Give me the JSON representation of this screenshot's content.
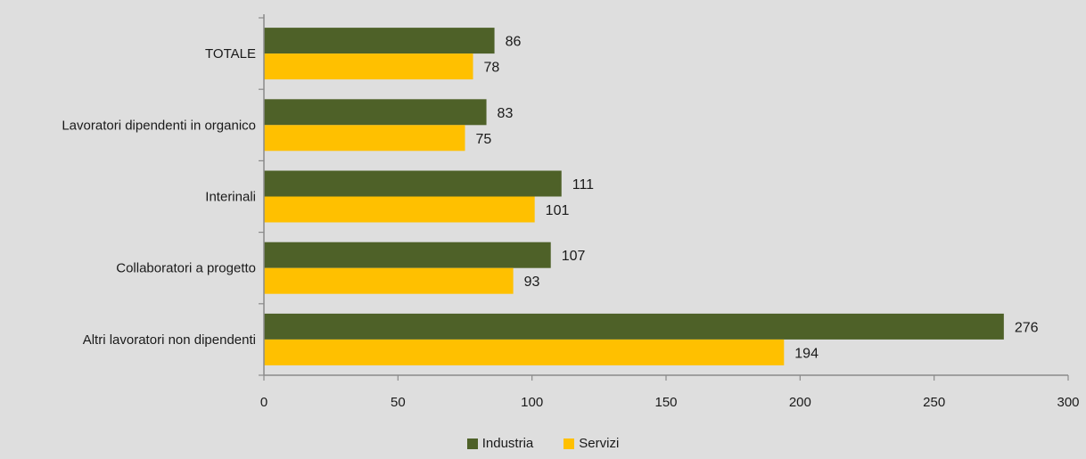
{
  "chart_data": {
    "type": "bar",
    "orientation": "horizontal",
    "categories": [
      "TOTALE",
      "Lavoratori dipendenti in organico",
      "Interinali",
      "Collaboratori a progetto",
      "Altri lavoratori non dipendenti"
    ],
    "series": [
      {
        "name": "Industria",
        "color": "#4e6128",
        "values": [
          86,
          83,
          111,
          107,
          276
        ]
      },
      {
        "name": "Servizi",
        "color": "#ffc000",
        "values": [
          78,
          75,
          101,
          93,
          194
        ]
      }
    ],
    "xlim": [
      0,
      300
    ],
    "xticks": [
      0,
      50,
      100,
      150,
      200,
      250,
      300
    ],
    "grid": false,
    "legend_position": "bottom"
  },
  "legend": {
    "items": [
      {
        "label": "Industria",
        "color": "#4e6128"
      },
      {
        "label": "Servizi",
        "color": "#ffc000"
      }
    ]
  }
}
